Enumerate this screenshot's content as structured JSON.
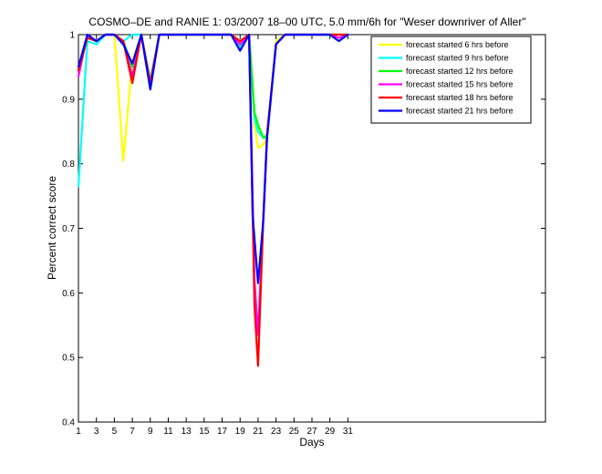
{
  "chart_data": {
    "type": "line",
    "title": "COSMO–DE and RANIE 1: 03/2007 18–00 UTC, 5.0 mm/6h for \"Weser downriver of Aller\"",
    "xlabel": "Days",
    "ylabel": "Percent correct score",
    "xlim": [
      1,
      53
    ],
    "ylim": [
      0.4,
      1.0
    ],
    "xticks": [
      1,
      3,
      5,
      7,
      9,
      11,
      13,
      15,
      17,
      19,
      21,
      23,
      25,
      27,
      29,
      31
    ],
    "yticks": [
      0.4,
      0.5,
      0.6,
      0.7,
      0.8,
      0.9,
      1.0
    ],
    "ytick_labels": [
      "0.4",
      "0.5",
      "0.6",
      "0.7",
      "0.8",
      "0.9",
      "1"
    ],
    "legend_position": "top-right",
    "series": [
      {
        "name": "forecast started 6 hrs before",
        "color": "#ffff00",
        "points": [
          [
            1,
            0.95
          ],
          [
            2,
            0.99
          ],
          [
            3,
            0.985
          ],
          [
            4,
            1.0
          ],
          [
            5,
            1.0
          ],
          [
            6,
            0.805
          ],
          [
            7,
            0.96
          ],
          [
            8,
            1.0
          ],
          [
            9,
            0.93
          ],
          [
            10,
            1.0
          ],
          [
            18,
            1.0
          ],
          [
            19,
            0.98
          ],
          [
            20,
            1.0
          ],
          [
            20.6,
            0.86
          ],
          [
            21,
            0.825
          ],
          [
            21.6,
            0.83
          ],
          [
            22,
            0.84
          ],
          [
            23,
            0.99
          ],
          [
            24,
            1.0
          ],
          [
            29,
            1.0
          ],
          [
            30,
            1.0
          ],
          [
            31,
            1.0
          ]
        ]
      },
      {
        "name": "forecast started 9 hrs before",
        "color": "#00ffff",
        "points": [
          [
            1,
            0.765
          ],
          [
            2,
            0.99
          ],
          [
            3,
            0.985
          ],
          [
            4,
            1.0
          ],
          [
            5,
            1.0
          ],
          [
            6,
            0.99
          ],
          [
            7,
            1.0
          ],
          [
            8,
            1.0
          ],
          [
            9,
            0.93
          ],
          [
            10,
            1.0
          ],
          [
            18,
            1.0
          ],
          [
            19,
            0.98
          ],
          [
            20,
            1.0
          ],
          [
            20.6,
            0.87
          ],
          [
            21,
            0.85
          ],
          [
            21.6,
            0.84
          ],
          [
            22,
            0.84
          ],
          [
            23,
            0.985
          ],
          [
            24,
            1.0
          ],
          [
            29,
            1.0
          ],
          [
            30,
            1.0
          ],
          [
            31,
            1.0
          ]
        ]
      },
      {
        "name": "forecast started 12 hrs before",
        "color": "#00ff00",
        "points": [
          [
            1,
            0.945
          ],
          [
            2,
            0.995
          ],
          [
            3,
            0.99
          ],
          [
            4,
            1.0
          ],
          [
            5,
            1.0
          ],
          [
            6,
            0.99
          ],
          [
            7,
            0.95
          ],
          [
            8,
            1.0
          ],
          [
            9,
            0.925
          ],
          [
            10,
            1.0
          ],
          [
            18,
            1.0
          ],
          [
            19,
            0.985
          ],
          [
            20,
            1.0
          ],
          [
            20.6,
            0.88
          ],
          [
            21,
            0.86
          ],
          [
            21.6,
            0.84
          ],
          [
            22,
            0.845
          ],
          [
            23,
            0.985
          ],
          [
            24,
            1.0
          ],
          [
            29,
            1.0
          ],
          [
            30,
            1.0
          ],
          [
            31,
            1.0
          ]
        ]
      },
      {
        "name": "forecast started 15 hrs before",
        "color": "#ff00ff",
        "points": [
          [
            1,
            0.935
          ],
          [
            2,
            1.0
          ],
          [
            3,
            0.99
          ],
          [
            4,
            1.0
          ],
          [
            5,
            1.0
          ],
          [
            6,
            0.99
          ],
          [
            7,
            0.935
          ],
          [
            8,
            1.0
          ],
          [
            9,
            0.92
          ],
          [
            10,
            1.0
          ],
          [
            18,
            1.0
          ],
          [
            19,
            0.985
          ],
          [
            20,
            1.0
          ],
          [
            20.6,
            0.62
          ],
          [
            21,
            0.535
          ],
          [
            21.6,
            0.72
          ],
          [
            22,
            0.845
          ],
          [
            23,
            0.985
          ],
          [
            24,
            1.0
          ],
          [
            29,
            1.0
          ],
          [
            30,
            0.995
          ],
          [
            31,
            1.0
          ]
        ]
      },
      {
        "name": "forecast started 18 hrs before",
        "color": "#ff0000",
        "points": [
          [
            1,
            0.945
          ],
          [
            2,
            0.995
          ],
          [
            3,
            0.99
          ],
          [
            4,
            1.0
          ],
          [
            5,
            1.0
          ],
          [
            6,
            0.99
          ],
          [
            7,
            0.925
          ],
          [
            8,
            1.0
          ],
          [
            9,
            0.925
          ],
          [
            10,
            1.0
          ],
          [
            18,
            1.0
          ],
          [
            19,
            0.99
          ],
          [
            20,
            1.0
          ],
          [
            20.6,
            0.58
          ],
          [
            21,
            0.487
          ],
          [
            21.6,
            0.72
          ],
          [
            22,
            0.845
          ],
          [
            23,
            0.985
          ],
          [
            24,
            1.0
          ],
          [
            29,
            1.0
          ],
          [
            30,
            1.0
          ],
          [
            31,
            1.0
          ]
        ]
      },
      {
        "name": "forecast started 21 hrs before",
        "color": "#0000ff",
        "points": [
          [
            1,
            0.95
          ],
          [
            2,
            1.0
          ],
          [
            3,
            0.99
          ],
          [
            4,
            1.0
          ],
          [
            5,
            1.0
          ],
          [
            6,
            0.985
          ],
          [
            7,
            0.955
          ],
          [
            8,
            1.0
          ],
          [
            9,
            0.915
          ],
          [
            10,
            1.0
          ],
          [
            18,
            1.0
          ],
          [
            19,
            0.975
          ],
          [
            20,
            1.0
          ],
          [
            20.4,
            0.72
          ],
          [
            21,
            0.615
          ],
          [
            21.6,
            0.715
          ],
          [
            22,
            0.84
          ],
          [
            23,
            0.985
          ],
          [
            24,
            1.0
          ],
          [
            29,
            1.0
          ],
          [
            30,
            0.99
          ],
          [
            31,
            1.0
          ]
        ]
      }
    ]
  }
}
